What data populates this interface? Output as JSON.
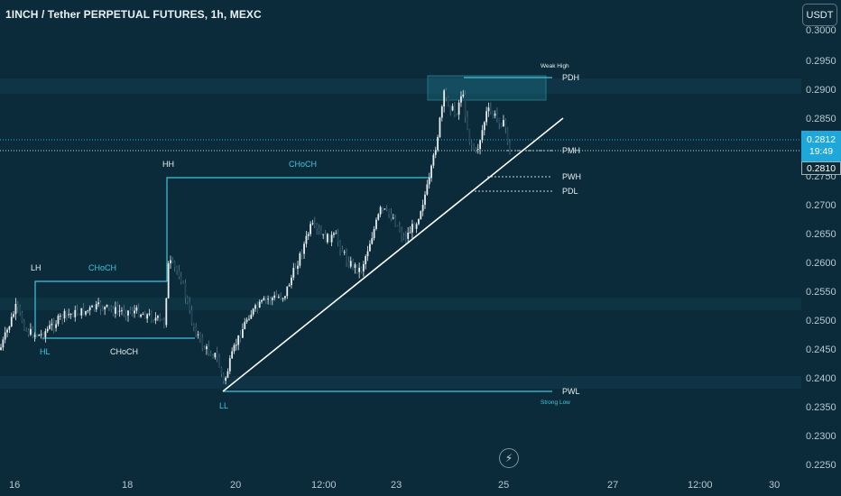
{
  "header": {
    "title": "1INCH / Tether PERPETUAL FUTURES, 1h, MEXC",
    "currency_button": "USDT"
  },
  "price_axis": {
    "ticks": [
      "0.3000",
      "0.2950",
      "0.2900",
      "0.2850",
      "0.2800",
      "0.2750",
      "0.2700",
      "0.2650",
      "0.2600",
      "0.2550",
      "0.2500",
      "0.2450",
      "0.2400",
      "0.2350",
      "0.2300",
      "0.2250"
    ],
    "last_price": "0.2812",
    "countdown": "19:49",
    "marker_price": "0.2810"
  },
  "time_axis": {
    "ticks": [
      "16",
      "18",
      "20",
      "12:00",
      "23",
      "25",
      "27",
      "12:00",
      "30"
    ]
  },
  "annotations": {
    "weak_high": "Weak High",
    "pdh": "PDH",
    "pmh": "PMH",
    "pwh": "PWH",
    "pdl": "PDL",
    "pwl": "PWL",
    "strong_low": "Strong Low",
    "hh": "HH",
    "lh": "LH",
    "hl": "HL",
    "ll": "LL",
    "choch_upper": "CHoCH",
    "choch_left": "CHoCH",
    "choch_lower": "CHoCH"
  },
  "colors": {
    "background": "#0b2b3a",
    "up_candle": "#e8eef1",
    "down_candle": "#1f4657",
    "structure_line": "#3fc6dc",
    "trendline": "#ffffff",
    "last_price_tag": "#1ea7d8"
  },
  "bolt_icon": "lightning-icon"
}
